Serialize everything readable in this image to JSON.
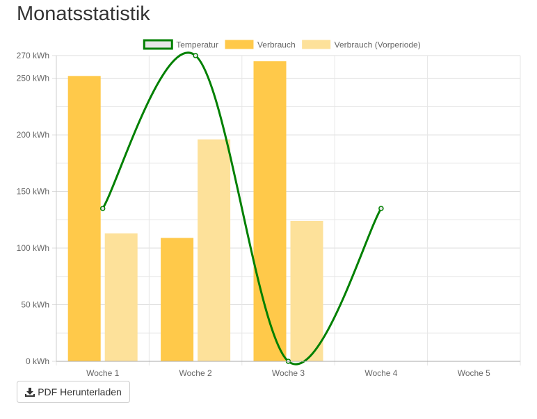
{
  "page": {
    "title": "Monatsstatistik",
    "pdf_button_label": "PDF Herunterladen",
    "pdf_button_icon": "download-icon"
  },
  "chart_data": {
    "type": "bar",
    "title": "",
    "xlabel": "",
    "ylabel": "",
    "categories": [
      "Woche 1",
      "Woche 2",
      "Woche 3",
      "Woche 4",
      "Woche 5"
    ],
    "ylim": [
      0,
      270
    ],
    "y_ticks": [
      0,
      50,
      100,
      150,
      200,
      250,
      270
    ],
    "y_unit": "kWh",
    "grid": true,
    "legend_position": "top",
    "series": [
      {
        "name": "Temperatur",
        "type": "line",
        "color": "#008000",
        "fill": "#e6e6e6",
        "values": [
          135,
          270,
          0,
          135,
          null
        ]
      },
      {
        "name": "Verbrauch",
        "type": "bar",
        "color": "#ffc94a",
        "values": [
          252,
          109,
          265,
          null,
          null
        ]
      },
      {
        "name": "Verbrauch (Vorperiode)",
        "type": "bar",
        "color": "#fde19a",
        "values": [
          113,
          196,
          124,
          null,
          null
        ]
      }
    ]
  }
}
